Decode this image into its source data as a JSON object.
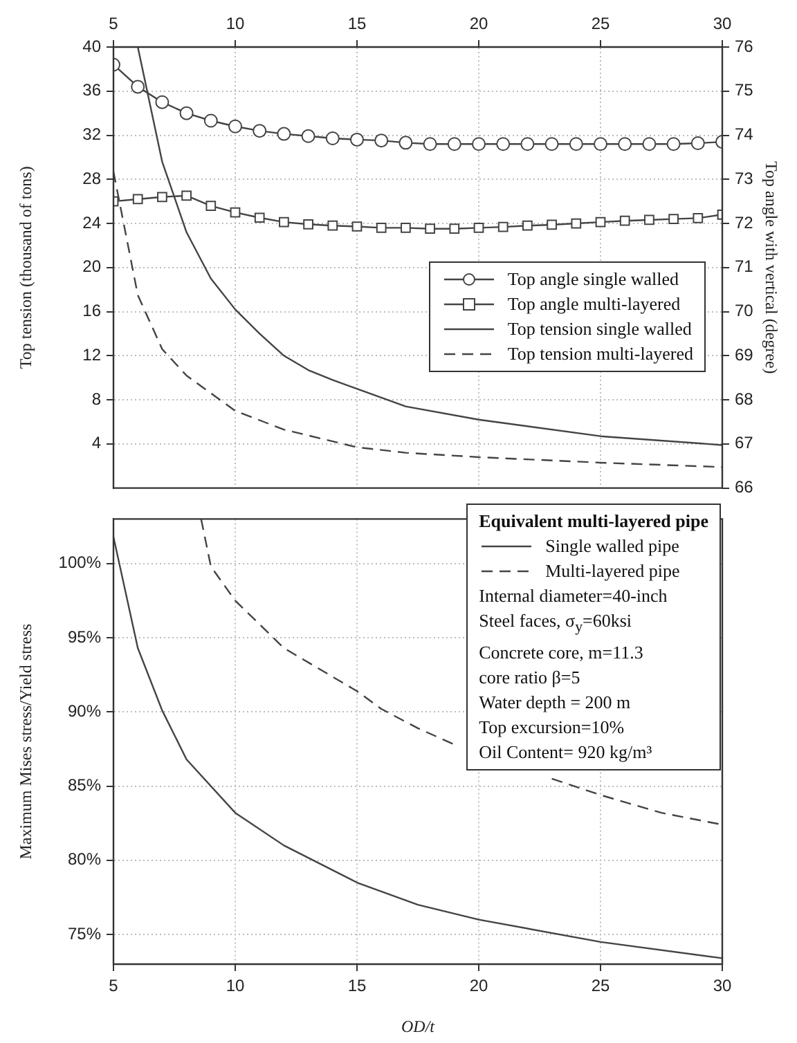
{
  "chart_data": [
    {
      "type": "line",
      "ylabel": "Top tension (thousand of tons)",
      "y2label": "Top angle with vertical (degree)",
      "xlim": [
        5,
        30
      ],
      "xticks": [
        5,
        10,
        15,
        20,
        25,
        30
      ],
      "ylim": [
        0,
        40
      ],
      "yticks": [
        4,
        8,
        12,
        16,
        20,
        24,
        28,
        32,
        36,
        40
      ],
      "y2lim": [
        66,
        76
      ],
      "y2ticks": [
        66,
        67,
        68,
        69,
        70,
        71,
        72,
        73,
        74,
        75,
        76
      ],
      "grid": true,
      "legend": "right",
      "series": [
        {
          "name": "Top angle single walled",
          "color": "#444444",
          "axis": "y2",
          "marker": "circle",
          "line_style": "solid",
          "x": [
            5,
            6,
            7,
            8,
            9,
            10,
            11,
            12,
            13,
            14,
            15,
            16,
            17,
            18,
            19,
            20,
            21,
            22,
            23,
            24,
            25,
            26,
            27,
            28,
            29,
            30
          ],
          "values": [
            75.6,
            75.1,
            74.75,
            74.5,
            74.33,
            74.2,
            74.1,
            74.03,
            73.98,
            73.93,
            73.9,
            73.88,
            73.83,
            73.8,
            73.8,
            73.8,
            73.8,
            73.8,
            73.8,
            73.8,
            73.8,
            73.8,
            73.8,
            73.8,
            73.82,
            73.85
          ]
        },
        {
          "name": "Top angle multi-layered",
          "color": "#444444",
          "axis": "y2",
          "marker": "square",
          "line_style": "solid",
          "x": [
            5,
            6,
            7,
            8,
            9,
            10,
            11,
            12,
            13,
            14,
            15,
            16,
            17,
            18,
            19,
            20,
            21,
            22,
            23,
            24,
            25,
            26,
            27,
            28,
            29,
            30
          ],
          "values": [
            72.5,
            72.55,
            72.6,
            72.63,
            72.4,
            72.25,
            72.13,
            72.03,
            71.98,
            71.95,
            71.93,
            71.9,
            71.9,
            71.88,
            71.88,
            71.9,
            71.92,
            71.95,
            71.97,
            72,
            72.03,
            72.06,
            72.08,
            72.1,
            72.12,
            72.2
          ]
        },
        {
          "name": "Top tension single walled",
          "color": "#444444",
          "marker": "none",
          "line_style": "solid",
          "x": [
            6,
            7,
            8,
            9,
            10,
            11,
            12,
            13,
            14,
            15,
            17,
            20,
            25,
            30
          ],
          "values": [
            40,
            29.6,
            23.2,
            19,
            16.2,
            14,
            12,
            10.7,
            9.8,
            9,
            7.4,
            6.2,
            4.7,
            3.9
          ]
        },
        {
          "name": "Top tension multi-layered",
          "color": "#444444",
          "marker": "none",
          "line_style": "dashed",
          "x": [
            5,
            6,
            7,
            8,
            10,
            12,
            15,
            17,
            20,
            25,
            30
          ],
          "values": [
            28.7,
            17.5,
            12.6,
            10.2,
            7,
            5.3,
            3.7,
            3.2,
            2.8,
            2.3,
            1.9
          ]
        }
      ]
    },
    {
      "type": "line",
      "xlabel": "OD/t",
      "ylabel": "Maximum Mises stress/Yield stress",
      "xlim": [
        5,
        30
      ],
      "xticks": [
        5,
        10,
        15,
        20,
        25,
        30
      ],
      "ylim": [
        73,
        103
      ],
      "yticks": [
        {
          "value": 75,
          "label": "75%"
        },
        {
          "value": 80,
          "label": "80%"
        },
        {
          "value": 85,
          "label": "85%"
        },
        {
          "value": 90,
          "label": "90%"
        },
        {
          "value": 95,
          "label": "95%"
        },
        {
          "value": 100,
          "label": "100%"
        }
      ],
      "grid": true,
      "legend": "top right",
      "legend_title": "Equivalent multi-layered pipe",
      "annotations": [
        "Internal diameter=40-inch",
        "Steel faces, σ$_{y}$=60ksi",
        "Concrete core, m=11.3",
        "core ratio β=5",
        "Water depth = 200 m",
        "Top excursion=10%",
        "Oil Content= 920 kg/m³"
      ],
      "series": [
        {
          "name": "Single walled pipe",
          "color": "#444444",
          "marker": "none",
          "line_style": "solid",
          "x": [
            5,
            6,
            7,
            8,
            10,
            12,
            15,
            17.5,
            20,
            25,
            30
          ],
          "values": [
            101.8,
            94.3,
            90.1,
            86.8,
            83.2,
            81,
            78.5,
            77,
            76,
            74.5,
            73.4
          ]
        },
        {
          "name": "Multi-layered pipe",
          "color": "#444444",
          "marker": "none",
          "line_style": "dashed",
          "x": [
            8.6,
            9,
            10,
            12,
            15,
            16,
            17.5,
            19,
            21,
            23,
            25,
            27.5,
            30
          ],
          "values": [
            103,
            99.8,
            97.5,
            94.3,
            91.4,
            90.2,
            88.9,
            87.8,
            null,
            85.5,
            84.4,
            83.2,
            82.4
          ]
        }
      ]
    }
  ]
}
